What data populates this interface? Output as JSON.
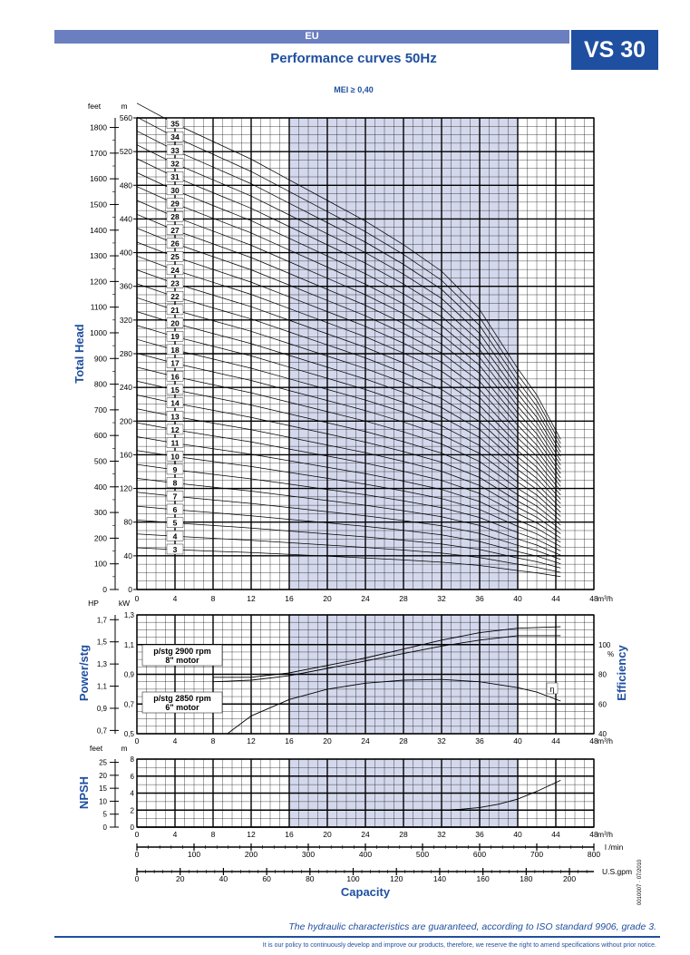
{
  "header": {
    "region": "EU",
    "model": "VS 30",
    "title": "Performance curves 50Hz",
    "mei": "MEI ≥ 0,40"
  },
  "footer": {
    "guarantee": "The hydraulic characteristics are guaranteed, according to ISO standard 9906, grade 3.",
    "policy": "It is our policy to continuously develop and improve our products, therefore, we reserve the right to amend specifications without prior notice.",
    "doc_ref": "0010007 · 07/2010"
  },
  "colors": {
    "brand": "#1f4fa0",
    "header_bar": "#6b7fc0",
    "recommended_band": "#d4d8ec",
    "grid": "#000000"
  },
  "chart_data": [
    {
      "type": "line",
      "name_label": "Total Head",
      "ylabel": "Total Head",
      "xlabel_unit": "m³/h",
      "y_units": [
        "feet",
        "m"
      ],
      "xlim": [
        0,
        48
      ],
      "ylim_m": [
        0,
        560
      ],
      "x_ticks": [
        0,
        4,
        8,
        12,
        16,
        20,
        24,
        28,
        32,
        36,
        40,
        44,
        48
      ],
      "y_ticks_m": [
        0,
        40,
        80,
        120,
        160,
        200,
        240,
        280,
        320,
        360,
        400,
        440,
        480,
        520,
        560
      ],
      "y_ticks_ft": [
        0,
        100,
        200,
        300,
        400,
        500,
        600,
        700,
        800,
        900,
        1000,
        1100,
        1200,
        1300,
        1400,
        1500,
        1600,
        1700,
        1800
      ],
      "recommended_range": [
        16,
        40
      ],
      "grid": true,
      "curve_x": [
        0,
        4,
        8,
        12,
        16,
        20,
        24,
        28,
        32,
        36,
        40,
        42,
        44.5
      ],
      "curve_head_per_stage_m": [
        16.5,
        15.8,
        15.2,
        14.6,
        13.9,
        13.2,
        12.5,
        11.7,
        10.8,
        9.5,
        7.5,
        6.6,
        5.1
      ],
      "stage_labels": [
        "3",
        "4",
        "5",
        "6",
        "7",
        "8",
        "9",
        "10",
        "11",
        "12",
        "13",
        "14",
        "15",
        "16",
        "17",
        "18",
        "19",
        "20",
        "21",
        "22",
        "23",
        "24",
        "25",
        "26",
        "27",
        "28",
        "29",
        "30",
        "31",
        "32",
        "33",
        "34",
        "35"
      ]
    },
    {
      "type": "line",
      "name_label": "Power/stg",
      "ylabel_left": "Power/stg",
      "ylabel_right": "Efficiency",
      "y_units": [
        "HP",
        "kW"
      ],
      "right_unit": "%",
      "xlabel_unit": "m³/h",
      "xlim": [
        0,
        48
      ],
      "x_ticks": [
        0,
        4,
        8,
        12,
        16,
        20,
        24,
        28,
        32,
        36,
        40,
        44,
        48
      ],
      "ylim_kw": [
        0.5,
        1.3
      ],
      "y_ticks_kw": [
        "0,5",
        "0,7",
        "0,9",
        "1,1",
        "1,3"
      ],
      "y_ticks_hp": [
        "0,7",
        "0,9",
        "1,1",
        "1,3",
        "1,5",
        "1,7"
      ],
      "ylim_eff": [
        40,
        120
      ],
      "y_ticks_eff": [
        "40",
        "60",
        "80",
        "100"
      ],
      "recommended_range": [
        16,
        40
      ],
      "motor_labels": [
        {
          "line1": "p/stg 2900 rpm",
          "line2": "8\" motor"
        },
        {
          "line1": "p/stg 2850 rpm",
          "line2": "6\" motor"
        }
      ],
      "eta_label": "η",
      "series": [
        {
          "key": "p2900",
          "x": [
            8,
            12,
            16,
            20,
            24,
            28,
            32,
            36,
            40,
            44.5
          ],
          "values": [
            0.88,
            0.88,
            0.91,
            0.96,
            1.01,
            1.07,
            1.13,
            1.18,
            1.21,
            1.22
          ]
        },
        {
          "key": "p2850",
          "x": [
            8,
            12,
            16,
            20,
            24,
            28,
            32,
            36,
            40,
            44.5
          ],
          "values": [
            0.85,
            0.86,
            0.89,
            0.94,
            0.99,
            1.04,
            1.09,
            1.13,
            1.16,
            1.16
          ]
        },
        {
          "key": "eff",
          "x": [
            9.5,
            12,
            16,
            20,
            24,
            28,
            32,
            36,
            40,
            42,
            44.5
          ],
          "values": [
            40,
            52,
            63,
            70,
            74,
            76,
            76.5,
            75,
            71,
            68,
            62
          ]
        }
      ]
    },
    {
      "type": "line",
      "name_label": "NPSH",
      "ylabel": "NPSH",
      "y_units": [
        "feet",
        "m"
      ],
      "xlabel_unit": "m³/h",
      "xlim": [
        0,
        48
      ],
      "x_ticks": [
        0,
        4,
        8,
        12,
        16,
        20,
        24,
        28,
        32,
        36,
        40,
        44,
        48
      ],
      "ylim_m": [
        0,
        8
      ],
      "y_ticks_m": [
        0,
        2,
        4,
        6,
        8
      ],
      "y_ticks_ft": [
        0,
        5,
        10,
        15,
        20,
        25
      ],
      "recommended_range": [
        16,
        40
      ],
      "series": [
        {
          "key": "npsh",
          "x": [
            32,
            34,
            36,
            38,
            40,
            42,
            44.5
          ],
          "values": [
            2.0,
            2.1,
            2.3,
            2.7,
            3.3,
            4.2,
            5.5
          ]
        }
      ]
    },
    {
      "type": "table",
      "name_label": "Capacity",
      "xlabel": "Capacity",
      "scales": [
        {
          "unit": "m³/h",
          "ticks": [
            0,
            4,
            8,
            12,
            16,
            20,
            24,
            28,
            32,
            36,
            40,
            44,
            48
          ],
          "max": 48
        },
        {
          "unit": "l /min",
          "ticks": [
            0,
            100,
            200,
            300,
            400,
            500,
            600,
            700,
            800
          ],
          "max": 800
        },
        {
          "unit": "U.S.gpm",
          "ticks": [
            0,
            20,
            40,
            60,
            80,
            100,
            120,
            140,
            160,
            180,
            200
          ],
          "max": 211.3
        }
      ]
    }
  ]
}
